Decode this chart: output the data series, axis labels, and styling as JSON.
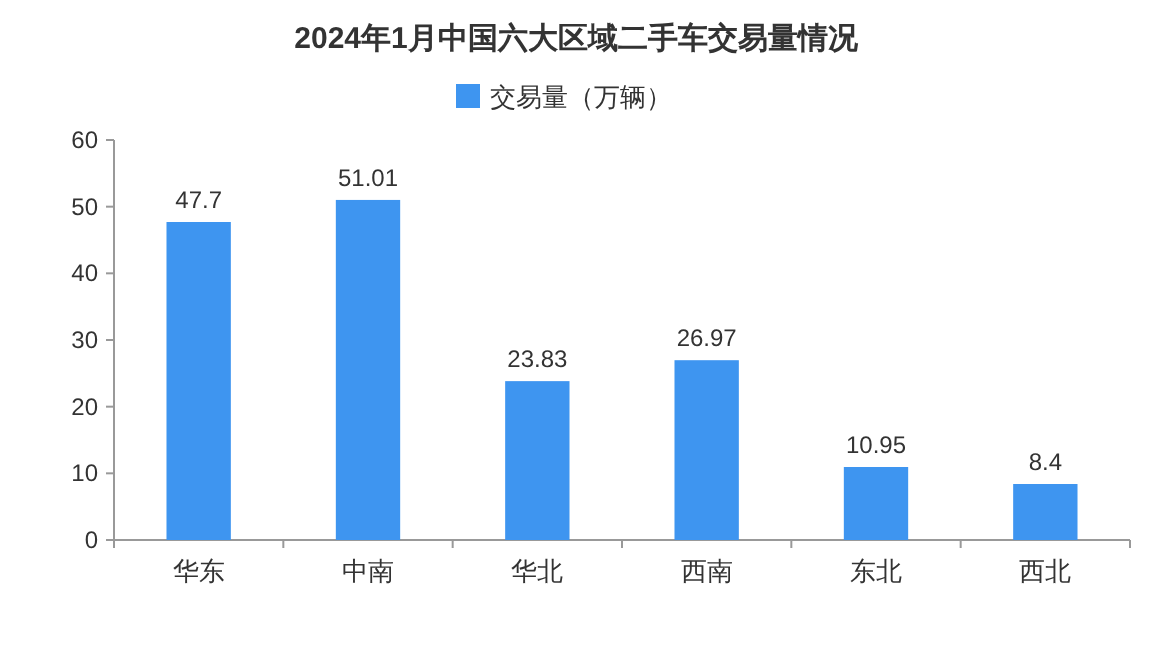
{
  "chart_data": {
    "type": "bar",
    "title": "2024年1月中国六大区域二手车交易量情况",
    "categories": [
      "华东",
      "中南",
      "华北",
      "西南",
      "东北",
      "西北"
    ],
    "series": [
      {
        "name": "交易量（万辆）",
        "color": "#3e95f0",
        "values": [
          47.7,
          51.01,
          23.83,
          26.97,
          10.95,
          8.4
        ]
      }
    ],
    "ylim": [
      0,
      60
    ],
    "yticks": [
      0,
      10,
      20,
      30,
      40,
      50,
      60
    ],
    "data_labels": true,
    "legend": "top"
  }
}
